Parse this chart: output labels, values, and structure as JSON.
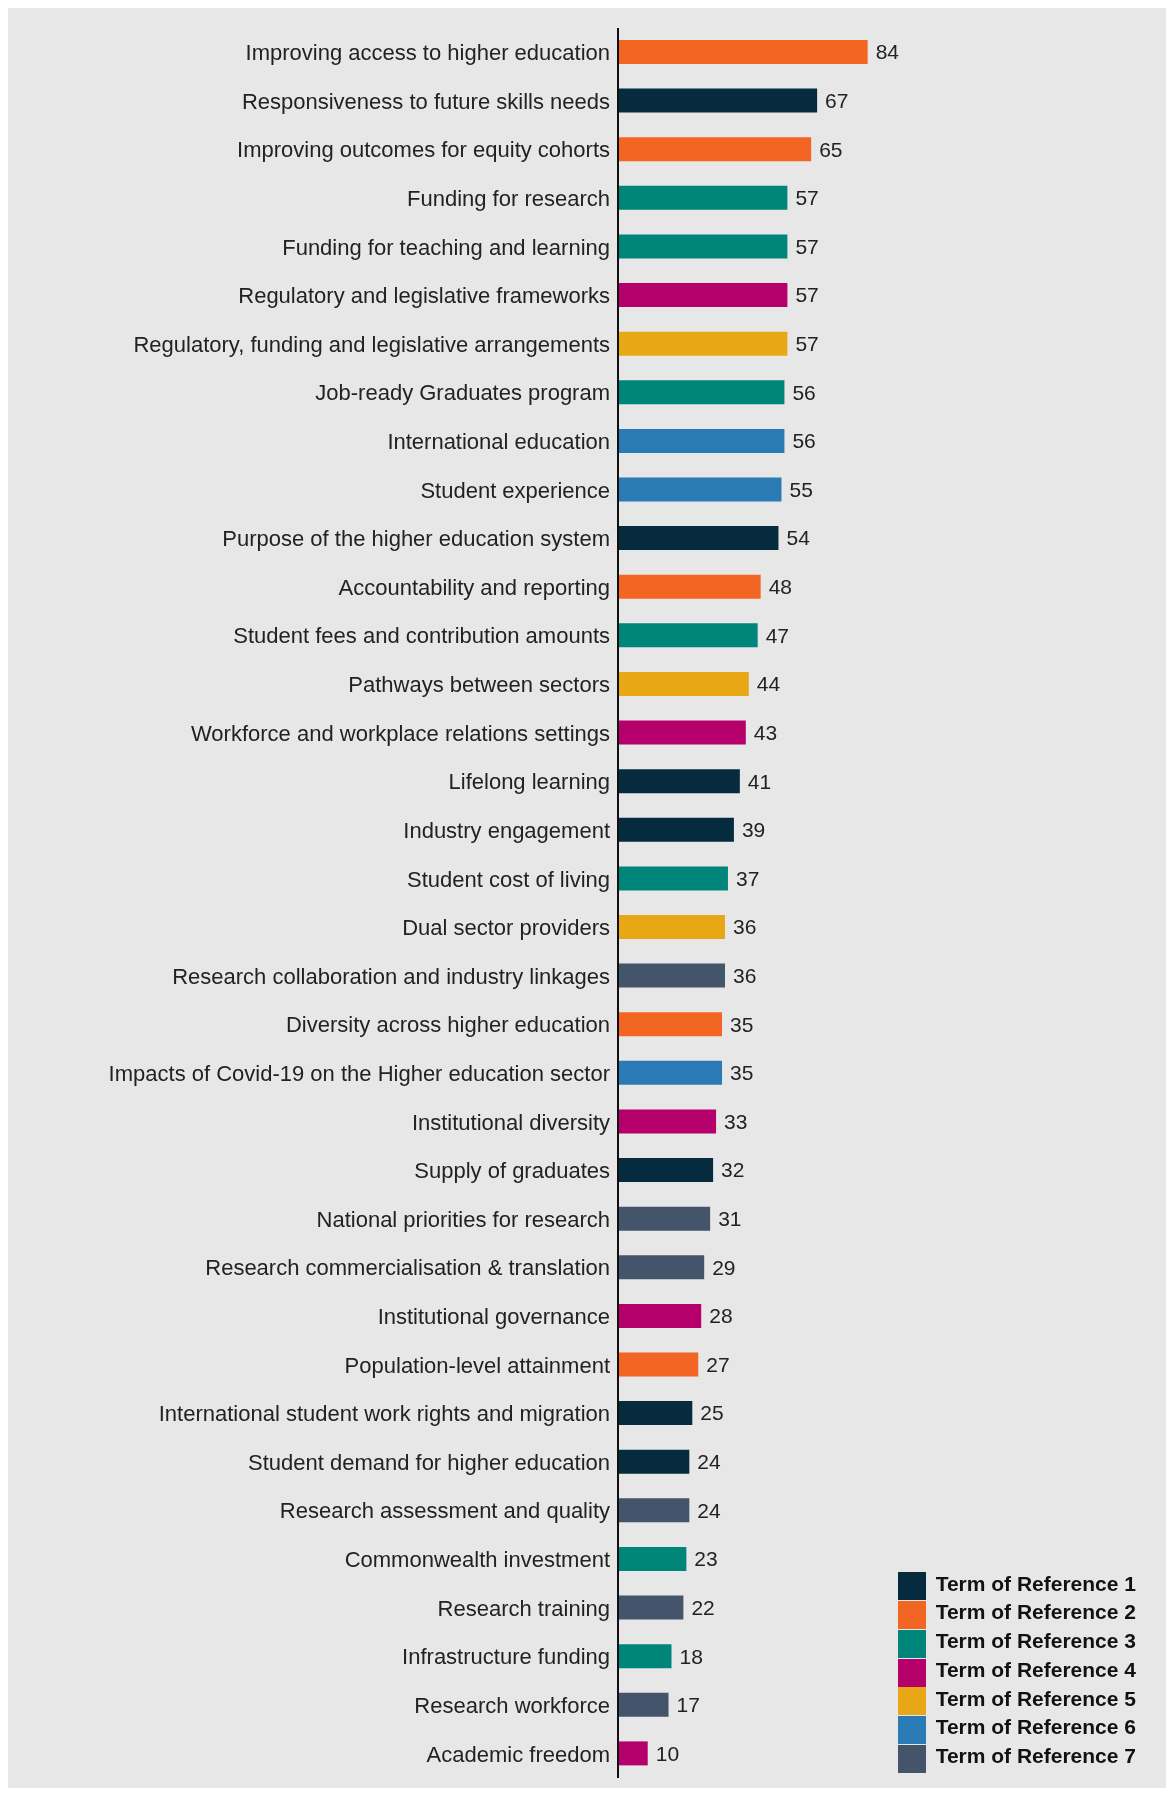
{
  "chart_data": {
    "type": "bar",
    "orientation": "horizontal",
    "stacked": true,
    "data_labels": true,
    "grid": false,
    "legend": "bottom right",
    "categories": [
      "Improving access to higher education",
      "Responsiveness to future skills needs",
      "Improving outcomes for equity cohorts",
      "Funding for research",
      "Funding for teaching and learning",
      "Regulatory and legislative frameworks",
      "Regulatory, funding and legislative arrangements",
      "Job-ready Graduates program",
      "International education",
      "Student experience",
      "Purpose of the higher education system",
      "Accountability and reporting",
      "Student fees and contribution amounts",
      "Pathways between sectors",
      "Workforce and workplace relations settings",
      "Lifelong learning",
      "Industry engagement",
      "Student cost of living",
      "Dual sector providers",
      "Research collaboration and industry linkages",
      "Diversity across higher education",
      "Impacts of Covid-19 on the Higher education sector",
      "Institutional diversity",
      "Supply of graduates",
      "National priorities for research",
      "Research commercialisation & translation",
      "Institutional governance",
      "Population-level attainment",
      "International student work rights and migration",
      "Student demand for higher education",
      "Research assessment and quality",
      "Commonwealth investment",
      "Research training",
      "Infrastructure funding",
      "Research workforce",
      "Academic freedom"
    ],
    "series": [
      {
        "name": "Term of Reference 1",
        "color": "#062b3e",
        "values": [
          null,
          67,
          null,
          null,
          null,
          null,
          null,
          null,
          null,
          null,
          54,
          null,
          null,
          null,
          null,
          41,
          39,
          null,
          null,
          null,
          null,
          null,
          null,
          32,
          null,
          null,
          null,
          null,
          25,
          24,
          null,
          null,
          null,
          null,
          null,
          null
        ]
      },
      {
        "name": "Term of Reference 2",
        "color": "#f26522",
        "values": [
          84,
          null,
          65,
          null,
          null,
          null,
          null,
          null,
          null,
          null,
          null,
          48,
          null,
          null,
          null,
          null,
          null,
          null,
          null,
          null,
          35,
          null,
          null,
          null,
          null,
          null,
          null,
          27,
          null,
          null,
          null,
          null,
          null,
          null,
          null,
          null
        ]
      },
      {
        "name": "Term of Reference 3",
        "color": "#00857a",
        "values": [
          null,
          null,
          null,
          57,
          57,
          null,
          null,
          56,
          null,
          null,
          null,
          null,
          47,
          null,
          null,
          null,
          null,
          37,
          null,
          null,
          null,
          null,
          null,
          null,
          null,
          null,
          null,
          null,
          null,
          null,
          null,
          23,
          null,
          18,
          null,
          null
        ]
      },
      {
        "name": "Term of Reference 4",
        "color": "#b5006b",
        "values": [
          null,
          null,
          null,
          null,
          null,
          57,
          null,
          null,
          null,
          null,
          null,
          null,
          null,
          null,
          43,
          null,
          null,
          null,
          null,
          null,
          null,
          null,
          33,
          null,
          null,
          null,
          28,
          null,
          null,
          null,
          null,
          null,
          null,
          null,
          null,
          10
        ]
      },
      {
        "name": "Term of Reference 5",
        "color": "#e8a815",
        "values": [
          null,
          null,
          null,
          null,
          null,
          null,
          57,
          null,
          null,
          null,
          null,
          null,
          null,
          44,
          null,
          null,
          null,
          null,
          36,
          null,
          null,
          null,
          null,
          null,
          null,
          null,
          null,
          null,
          null,
          null,
          null,
          null,
          null,
          null,
          null,
          null
        ]
      },
      {
        "name": "Term of Reference 6",
        "color": "#2a7ab5",
        "values": [
          null,
          null,
          null,
          null,
          null,
          null,
          null,
          null,
          56,
          55,
          null,
          null,
          null,
          null,
          null,
          null,
          null,
          null,
          null,
          null,
          null,
          35,
          null,
          null,
          null,
          null,
          null,
          null,
          null,
          null,
          null,
          null,
          null,
          null,
          null,
          null
        ]
      },
      {
        "name": "Term of Reference 7",
        "color": "#44546a",
        "values": [
          null,
          null,
          null,
          null,
          null,
          null,
          null,
          null,
          null,
          null,
          null,
          null,
          null,
          null,
          null,
          null,
          null,
          null,
          null,
          36,
          null,
          null,
          null,
          null,
          31,
          29,
          null,
          null,
          null,
          null,
          24,
          null,
          22,
          null,
          17,
          null
        ]
      }
    ]
  }
}
